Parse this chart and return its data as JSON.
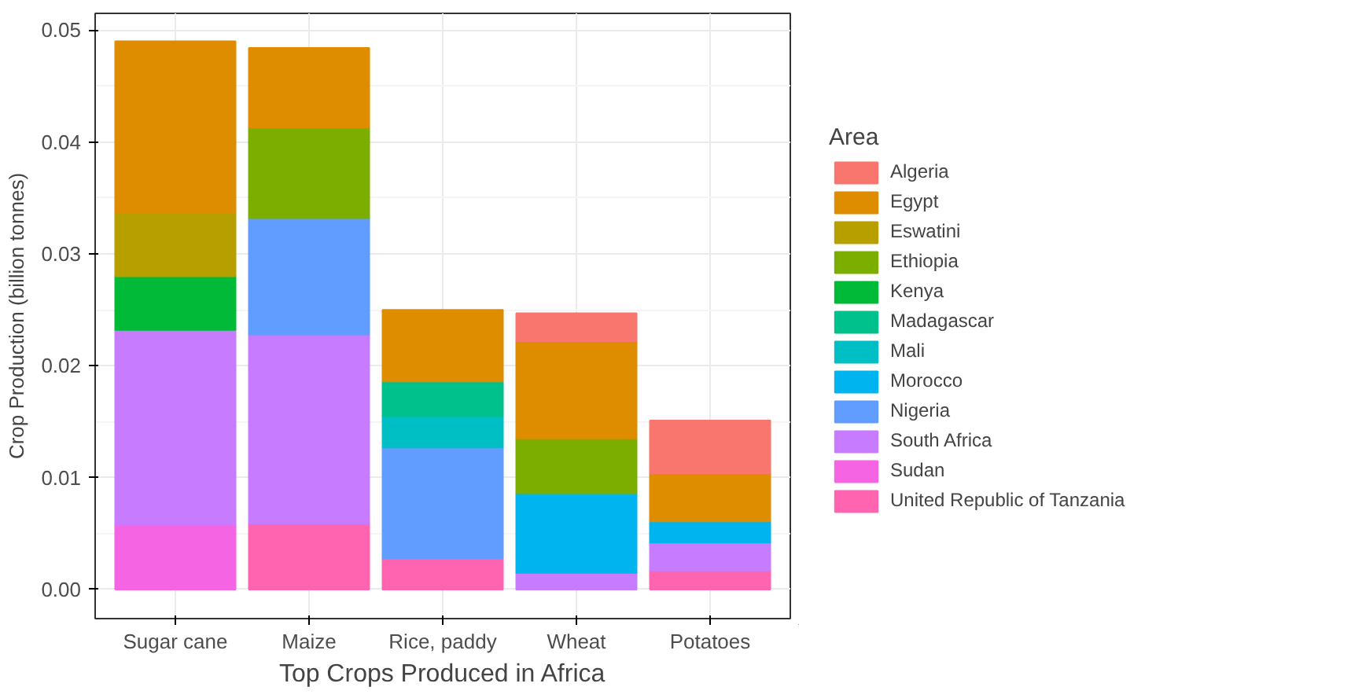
{
  "chart_data": {
    "type": "bar",
    "stacked": true,
    "xlabel": "Top Crops Produced in Africa",
    "ylabel": "Crop Production (billion tonnes)",
    "legend_title": "Area",
    "legend": "right",
    "grid": true,
    "categories": [
      "Sugar cane",
      "Maize",
      "Rice, paddy",
      "Wheat",
      "Potatoes"
    ],
    "ylim": [
      -0.0026,
      0.0515
    ],
    "yticks": [
      {
        "value": 0,
        "label": "0.00"
      },
      {
        "value": 0.01,
        "label": "0.01"
      },
      {
        "value": 0.02,
        "label": "0.02"
      },
      {
        "value": 0.03,
        "label": "0.03"
      },
      {
        "value": 0.04,
        "label": "0.04"
      },
      {
        "value": 0.05,
        "label": "0.05"
      }
    ],
    "series": [
      {
        "name": "United Republic of Tanzania",
        "color": "#ff64b0",
        "values": [
          null,
          0.0059,
          0.0028,
          null,
          0.0017
        ]
      },
      {
        "name": "Sudan",
        "color": "#f564e3",
        "values": [
          0.0058,
          null,
          null,
          null,
          null
        ]
      },
      {
        "name": "South Africa",
        "color": "#c77cff",
        "values": [
          0.0174,
          0.0169,
          null,
          0.0015,
          0.0025
        ]
      },
      {
        "name": "Nigeria",
        "color": "#619cff",
        "values": [
          null,
          0.0104,
          0.0099,
          null,
          null
        ]
      },
      {
        "name": "Morocco",
        "color": "#00b4f0",
        "values": [
          null,
          null,
          null,
          0.0071,
          0.0019
        ]
      },
      {
        "name": "Mali",
        "color": "#00bfc4",
        "values": [
          null,
          null,
          0.0028,
          null,
          null
        ]
      },
      {
        "name": "Madagascar",
        "color": "#00c08b",
        "values": [
          null,
          null,
          0.0031,
          null,
          null
        ]
      },
      {
        "name": "Kenya",
        "color": "#00ba38",
        "values": [
          0.0048,
          null,
          null,
          null,
          null
        ]
      },
      {
        "name": "Ethiopia",
        "color": "#7cae00",
        "values": [
          null,
          0.0081,
          null,
          0.0049,
          null
        ]
      },
      {
        "name": "Eswatini",
        "color": "#b79f00",
        "values": [
          0.0057,
          null,
          null,
          null,
          null
        ]
      },
      {
        "name": "Egypt",
        "color": "#de8c00",
        "values": [
          0.0153,
          0.0071,
          0.0064,
          0.0087,
          0.0043
        ]
      },
      {
        "name": "Algeria",
        "color": "#f8766d",
        "values": [
          null,
          null,
          null,
          0.0025,
          0.0047
        ]
      }
    ]
  }
}
